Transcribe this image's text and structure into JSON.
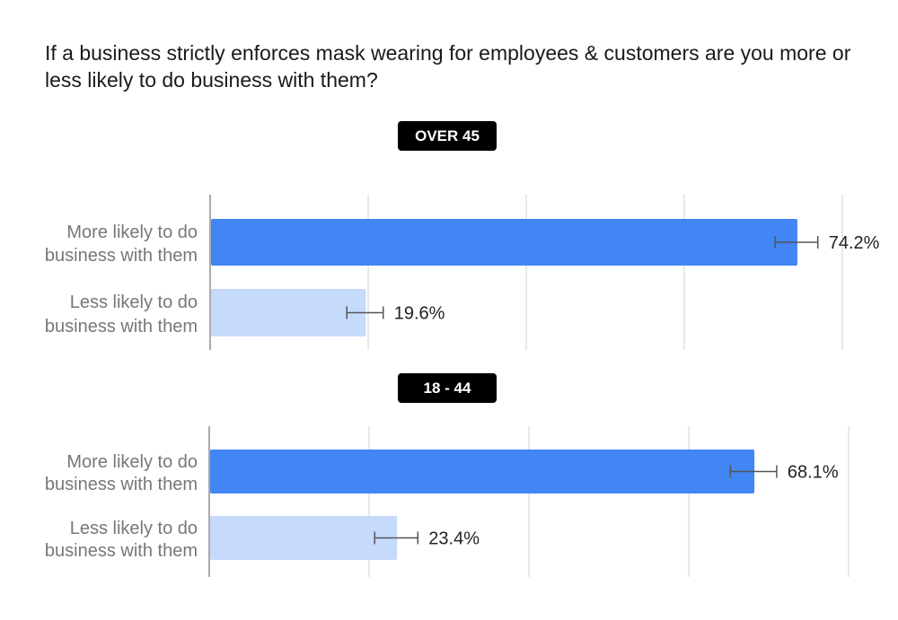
{
  "chart_data": [
    {
      "type": "bar",
      "title": "If a business strictly enforces mask wearing for employees & customers are you more or less likely to do business with them?",
      "subtitle": "OVER 45",
      "categories": [
        [
          "More likely to do",
          "business with them"
        ],
        [
          "Less likely to do",
          "business with them"
        ]
      ],
      "values": [
        74.2,
        19.6
      ],
      "value_labels": [
        "74.2%",
        "19.6%"
      ],
      "error_margin": [
        2.7,
        2.3
      ],
      "xlim": [
        0,
        80
      ],
      "grid": true,
      "colors": [
        "#4285f4",
        "#c6dafc"
      ]
    },
    {
      "type": "bar",
      "subtitle": "18 - 44",
      "categories": [
        [
          "More likely to do",
          "business with them"
        ],
        [
          "Less likely to do",
          "business with them"
        ]
      ],
      "values": [
        68.1,
        23.4
      ],
      "value_labels": [
        "68.1%",
        "23.4%"
      ],
      "error_margin": [
        2.9,
        2.7
      ],
      "xlim": [
        0,
        80
      ],
      "grid": true,
      "colors": [
        "#4285f4",
        "#c6dafc"
      ]
    }
  ],
  "colors": {
    "axis": "#aaaaaa",
    "grid": "#e0e0e0",
    "error_bar": "#555555",
    "badge_bg": "#000000"
  }
}
